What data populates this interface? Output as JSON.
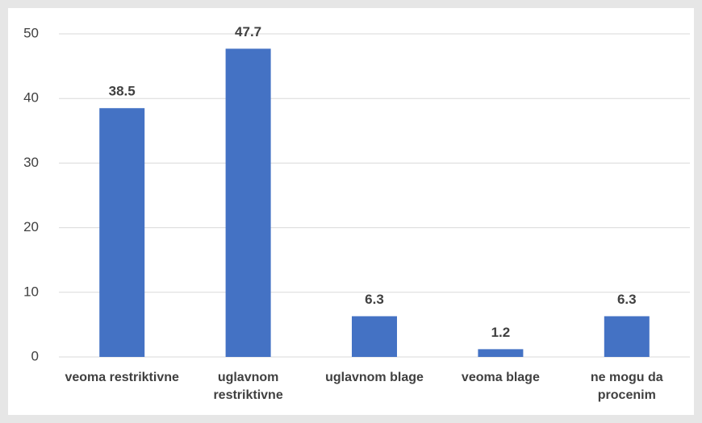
{
  "chart_data": {
    "type": "bar",
    "categories": [
      "veoma restriktivne",
      "uglavnom restriktivne",
      "uglavnom blage",
      "veoma blage",
      "ne mogu da procenim"
    ],
    "values": [
      38.5,
      47.7,
      6.3,
      1.2,
      6.3
    ],
    "color": "#4472c4",
    "ylim": [
      0,
      50
    ],
    "yticks": [
      0,
      10,
      20,
      30,
      40,
      50
    ],
    "grid": true
  }
}
